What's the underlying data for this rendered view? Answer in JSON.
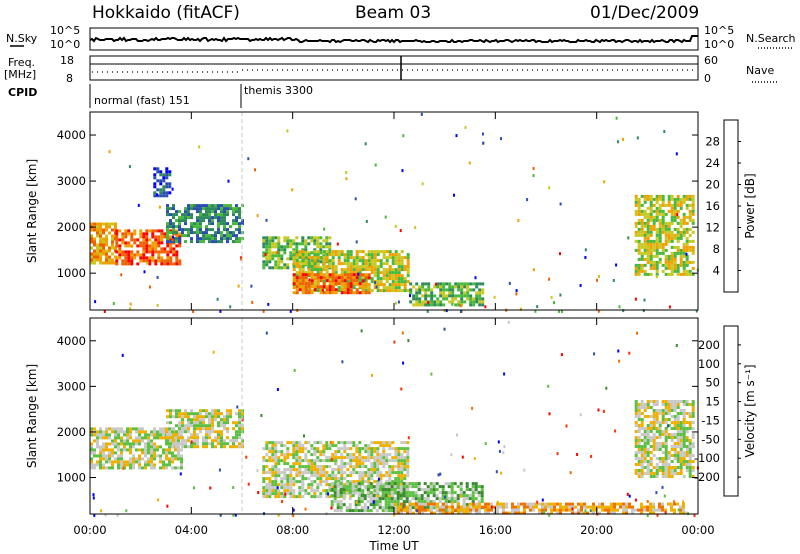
{
  "header": {
    "station": "Hokkaido (fitACF)",
    "beam": "Beam 03",
    "date": "01/Dec/2009"
  },
  "top_panels": {
    "nsky_label": "N.Sky",
    "nsky_ticks": [
      "10^5",
      "10^0"
    ],
    "nsearch_label": "N.Search",
    "nsearch_ticks": [
      "10^5",
      "10^0"
    ],
    "freq_label": "Freq.",
    "freq_unit": "[MHz]",
    "freq_ticks": [
      "18",
      "8"
    ],
    "nave_label": "Nave",
    "nave_ticks": [
      "60",
      "0"
    ],
    "cpid_label": "CPID",
    "cpid_modes": [
      "normal (fast) 151",
      "themis 3300"
    ]
  },
  "chart_data": [
    {
      "type": "heatmap",
      "name": "power-panel",
      "ylabel": "Slant Range [km]",
      "xlabel": "",
      "x_ticks": [
        "00:00",
        "04:00",
        "08:00",
        "12:00",
        "16:00",
        "20:00",
        "00:00"
      ],
      "y_ticks": [
        1000,
        2000,
        3000,
        4000
      ],
      "ylim": [
        200,
        4500
      ],
      "xlim_hours": [
        0,
        24
      ],
      "colorbar": {
        "label": "Power [dB]",
        "ticks": [
          "4",
          "8",
          "12",
          "16",
          "20",
          "24",
          "28"
        ],
        "colors": [
          "#0000ff",
          "#2a4fb0",
          "#2f8a5a",
          "#46b83a",
          "#c8c820",
          "#f0a000",
          "#f06000",
          "#ff0000"
        ]
      },
      "regions": [
        {
          "x": [
            0.0,
            1.0
          ],
          "y": [
            1200,
            2100
          ],
          "level": 5
        },
        {
          "x": [
            1.0,
            3.6
          ],
          "y": [
            1200,
            1950
          ],
          "level": 6
        },
        {
          "x": [
            3.0,
            6.0
          ],
          "y": [
            1700,
            2500
          ],
          "level": 2
        },
        {
          "x": [
            2.5,
            3.1
          ],
          "y": [
            2700,
            3300
          ],
          "level": 1
        },
        {
          "x": [
            6.8,
            9.5
          ],
          "y": [
            1100,
            1800
          ],
          "level": 3
        },
        {
          "x": [
            8.0,
            12.6
          ],
          "y": [
            600,
            1500
          ],
          "level": 4
        },
        {
          "x": [
            8.0,
            11.0
          ],
          "y": [
            600,
            1000
          ],
          "level": 6
        },
        {
          "x": [
            12.6,
            15.5
          ],
          "y": [
            300,
            800
          ],
          "level": 3
        },
        {
          "x": [
            21.5,
            23.8
          ],
          "y": [
            1000,
            2700
          ],
          "level": 4
        }
      ]
    },
    {
      "type": "heatmap",
      "name": "velocity-panel",
      "ylabel": "Slant Range [km]",
      "xlabel": "Time UT",
      "x_ticks": [
        "00:00",
        "04:00",
        "08:00",
        "12:00",
        "16:00",
        "20:00",
        "00:00"
      ],
      "y_ticks": [
        1000,
        2000,
        3000,
        4000
      ],
      "ylim": [
        200,
        4500
      ],
      "xlim_hours": [
        0,
        24
      ],
      "colorbar": {
        "label": "Velocity [m s⁻¹]",
        "ticks": [
          "200",
          "100",
          "50",
          "15",
          "-15",
          "-50",
          "-100",
          "-200"
        ],
        "colors": [
          "#0000ff",
          "#2a4fb0",
          "#3a8a30",
          "#5cc040",
          "#c8c8c8",
          "#f0b000",
          "#f07000",
          "#ff3000",
          "#ff0000"
        ]
      },
      "regions": [
        {
          "x": [
            0.0,
            3.6
          ],
          "y": [
            1200,
            2100
          ],
          "level": 4
        },
        {
          "x": [
            3.0,
            6.0
          ],
          "y": [
            1700,
            2500
          ],
          "level": 4
        },
        {
          "x": [
            6.8,
            12.6
          ],
          "y": [
            600,
            1800
          ],
          "level": 4
        },
        {
          "x": [
            9.5,
            15.5
          ],
          "y": [
            300,
            900
          ],
          "level": 3
        },
        {
          "x": [
            12.0,
            23.5
          ],
          "y": [
            200,
            450
          ],
          "level": 5
        },
        {
          "x": [
            21.5,
            23.8
          ],
          "y": [
            1000,
            2700
          ],
          "level": 4
        }
      ]
    }
  ]
}
